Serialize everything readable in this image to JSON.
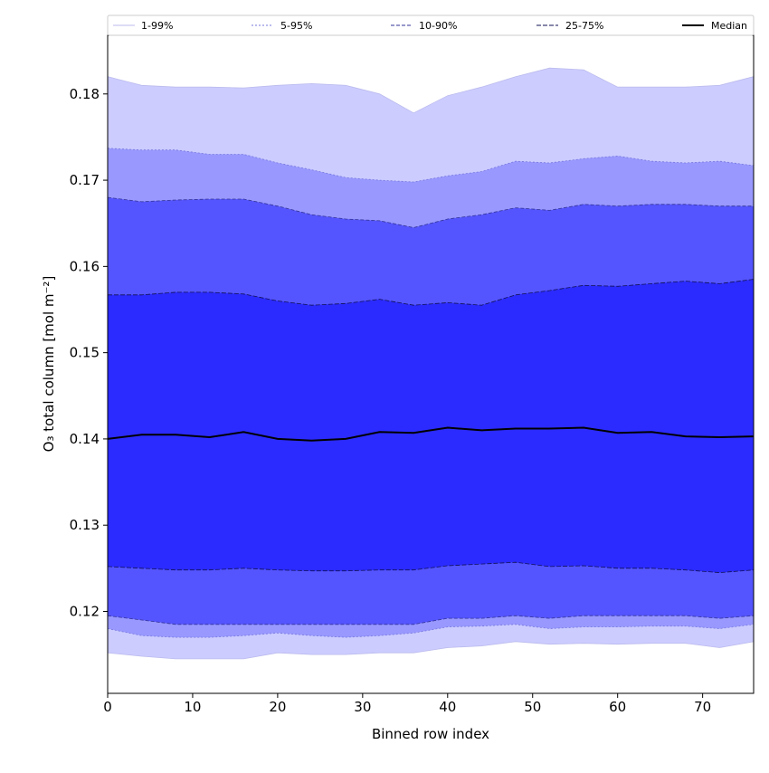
{
  "chart_data": {
    "type": "area",
    "title": "",
    "xlabel": "Binned row index",
    "ylabel": "O₃ total column [mol m⁻²]",
    "xlim": [
      0,
      76
    ],
    "ylim": [
      0.1105,
      0.1868
    ],
    "xticks": [
      0,
      10,
      20,
      30,
      40,
      50,
      60,
      70
    ],
    "yticks": [
      0.12,
      0.13,
      0.14,
      0.15,
      0.16,
      0.17,
      0.18
    ],
    "ytick_format": 2,
    "grid": false,
    "legend_position": "top, full width, above plot",
    "x": [
      0,
      4,
      8,
      12,
      16,
      20,
      24,
      28,
      32,
      36,
      40,
      44,
      48,
      52,
      56,
      60,
      64,
      68,
      72,
      76
    ],
    "series": [
      {
        "name": "1-99%",
        "band": true,
        "color": "#ccccff",
        "line_color": "#bbbbee",
        "dash": "",
        "lower": [
          0.1152,
          0.1148,
          0.1145,
          0.1145,
          0.1145,
          0.1152,
          0.115,
          0.115,
          0.1152,
          0.1152,
          0.1158,
          0.116,
          0.1165,
          0.1162,
          0.1163,
          0.1162,
          0.1163,
          0.1163,
          0.1158,
          0.1165
        ],
        "upper": [
          0.182,
          0.181,
          0.1808,
          0.1808,
          0.1807,
          0.181,
          0.1812,
          0.181,
          0.18,
          0.1778,
          0.1798,
          0.1808,
          0.182,
          0.183,
          0.1828,
          0.1808,
          0.1808,
          0.1808,
          0.181,
          0.182
        ]
      },
      {
        "name": "5-95%",
        "band": true,
        "color": "#9898ff",
        "line_color": "#7777dd",
        "dash": "2,2",
        "lower": [
          0.118,
          0.1172,
          0.117,
          0.117,
          0.1172,
          0.1175,
          0.1172,
          0.117,
          0.1172,
          0.1175,
          0.1182,
          0.1183,
          0.1185,
          0.118,
          0.1182,
          0.1182,
          0.1183,
          0.1183,
          0.118,
          0.1185
        ],
        "upper": [
          0.1737,
          0.1735,
          0.1735,
          0.173,
          0.173,
          0.172,
          0.1712,
          0.1703,
          0.17,
          0.1698,
          0.1705,
          0.171,
          0.1722,
          0.172,
          0.1725,
          0.1728,
          0.1722,
          0.172,
          0.1722,
          0.1717
        ]
      },
      {
        "name": "10-90%",
        "band": true,
        "color": "#5555ff",
        "line_color": "#333399",
        "dash": "4,2",
        "lower": [
          0.1195,
          0.119,
          0.1185,
          0.1185,
          0.1185,
          0.1185,
          0.1185,
          0.1185,
          0.1185,
          0.1185,
          0.1192,
          0.1192,
          0.1195,
          0.1192,
          0.1195,
          0.1195,
          0.1195,
          0.1195,
          0.1192,
          0.1195
        ],
        "upper": [
          0.168,
          0.1675,
          0.1677,
          0.1678,
          0.1678,
          0.167,
          0.166,
          0.1655,
          0.1653,
          0.1645,
          0.1655,
          0.166,
          0.1668,
          0.1665,
          0.1672,
          0.167,
          0.1672,
          0.1672,
          0.167,
          0.167
        ]
      },
      {
        "name": "25-75%",
        "band": true,
        "color": "#2b2bff",
        "line_color": "#111155",
        "dash": "5,2",
        "lower": [
          0.1252,
          0.125,
          0.1248,
          0.1248,
          0.125,
          0.1248,
          0.1247,
          0.1247,
          0.1248,
          0.1248,
          0.1253,
          0.1255,
          0.1257,
          0.1252,
          0.1253,
          0.125,
          0.125,
          0.1248,
          0.1245,
          0.1248
        ],
        "upper": [
          0.1567,
          0.1567,
          0.157,
          0.157,
          0.1568,
          0.156,
          0.1555,
          0.1557,
          0.1562,
          0.1555,
          0.1558,
          0.1555,
          0.1567,
          0.1572,
          0.1578,
          0.1577,
          0.158,
          0.1583,
          0.158,
          0.1585
        ]
      },
      {
        "name": "Median",
        "band": false,
        "color": "#000000",
        "line_color": "#000000",
        "dash": "",
        "values": [
          0.14,
          0.1405,
          0.1405,
          0.1402,
          0.1408,
          0.14,
          0.1398,
          0.14,
          0.1408,
          0.1407,
          0.1413,
          0.141,
          0.1412,
          0.1412,
          0.1413,
          0.1407,
          0.1408,
          0.1403,
          0.1402,
          0.1403
        ]
      }
    ]
  }
}
